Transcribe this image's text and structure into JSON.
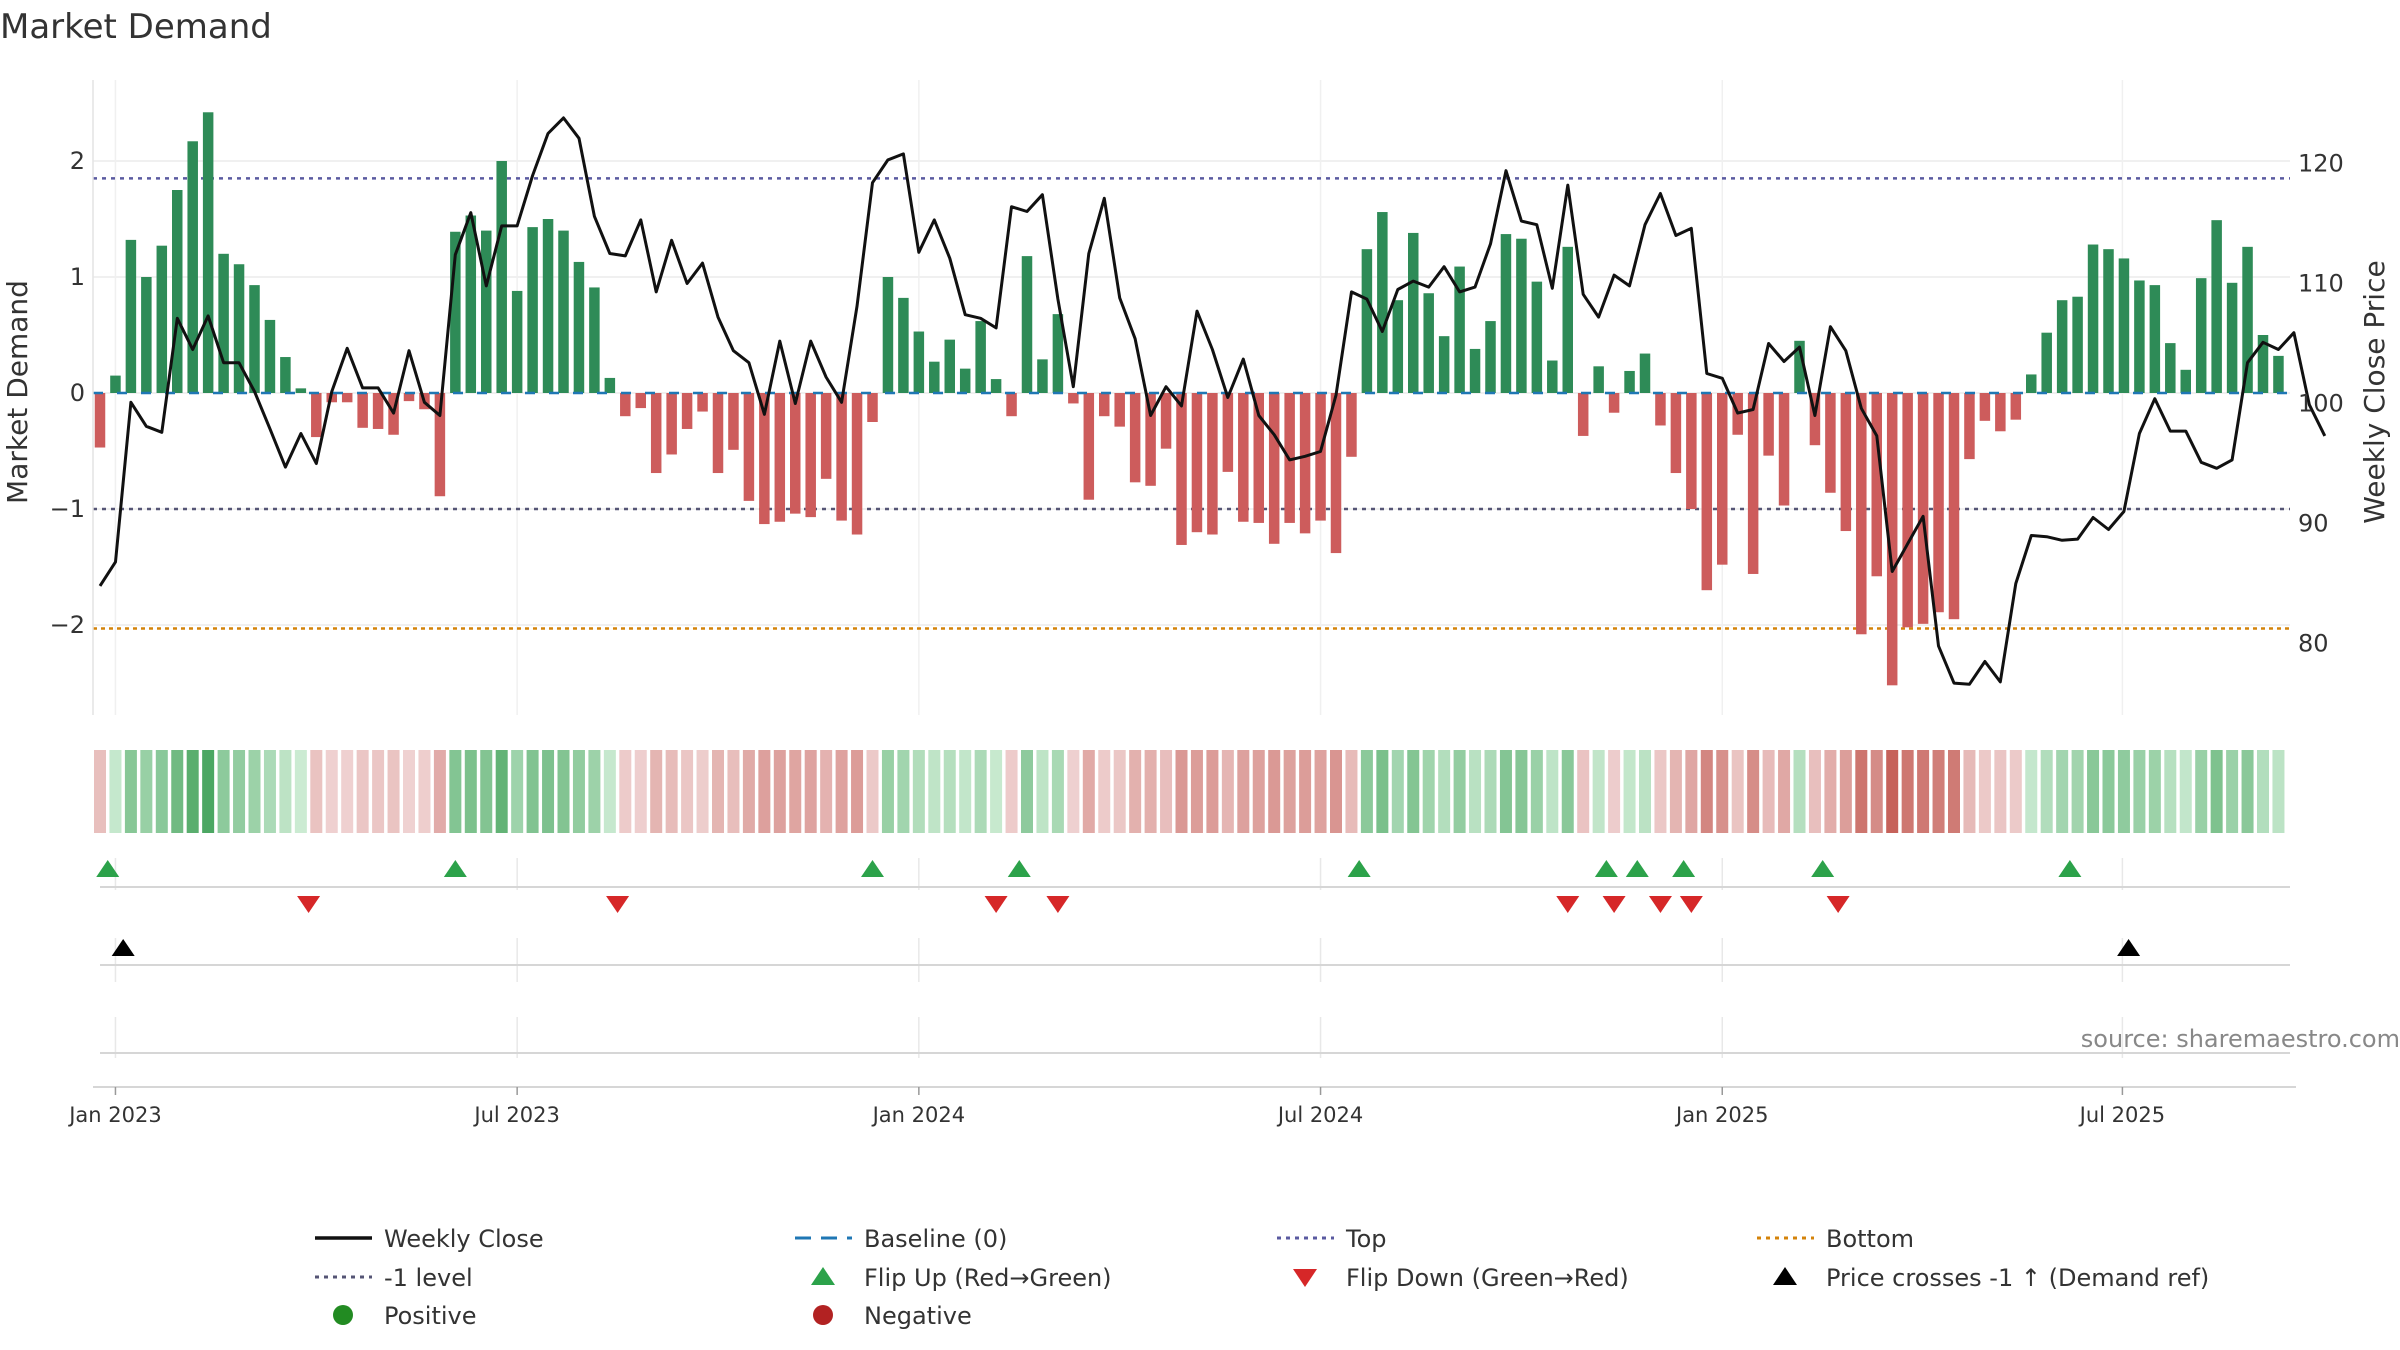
{
  "chart_data": {
    "type": "bar",
    "title": "Market Demand",
    "ylabel_left": "Market Demand",
    "ylabel_right": "Weekly Close Price",
    "source": "source: sharemaestro.com",
    "ylim_left": [
      -2.75,
      2.75
    ],
    "ylim_right": [
      74.37,
      127.72
    ],
    "yticks_left": [
      -2,
      -1,
      0,
      1,
      2
    ],
    "ytick_labels_left": [
      "−2",
      "−1",
      "0",
      "1",
      "2"
    ],
    "yticks_right": [
      80,
      90,
      100,
      110,
      120
    ],
    "ytick_labels_right": [
      "80",
      "90",
      "100",
      "110",
      "120"
    ],
    "reference_lines": {
      "top": 1.85,
      "level_minus1": -1,
      "bottom": -2.03,
      "baseline": 0
    },
    "x_start": "2022-12-25",
    "x_ticks": [
      {
        "label": "Jan 2023",
        "week": 1
      },
      {
        "label": "Jul 2023",
        "week": 27
      },
      {
        "label": "Jan 2024",
        "week": 53
      },
      {
        "label": "Jul 2024",
        "week": 79
      },
      {
        "label": "Jan 2025",
        "week": 105
      },
      {
        "label": "Jul 2025",
        "week": 130.9
      }
    ],
    "demand": [
      -0.47,
      0.15,
      1.32,
      1.0,
      1.27,
      1.75,
      2.17,
      2.42,
      1.2,
      1.11,
      0.93,
      0.63,
      0.31,
      0.04,
      -0.38,
      -0.08,
      -0.08,
      -0.3,
      -0.31,
      -0.36,
      -0.07,
      -0.14,
      -0.89,
      1.39,
      1.53,
      1.4,
      2.0,
      0.88,
      1.43,
      1.5,
      1.4,
      1.13,
      0.91,
      0.13,
      -0.2,
      -0.13,
      -0.69,
      -0.53,
      -0.31,
      -0.16,
      -0.69,
      -0.49,
      -0.93,
      -1.13,
      -1.11,
      -1.04,
      -1.07,
      -0.74,
      -1.1,
      -1.22,
      -0.25,
      1.0,
      0.82,
      0.53,
      0.27,
      0.46,
      0.21,
      0.62,
      0.12,
      -0.2,
      1.18,
      0.29,
      0.68,
      -0.09,
      -0.92,
      -0.2,
      -0.29,
      -0.77,
      -0.8,
      -0.48,
      -1.31,
      -1.2,
      -1.22,
      -0.68,
      -1.11,
      -1.12,
      -1.3,
      -1.12,
      -1.21,
      -1.1,
      -1.38,
      -0.55,
      1.24,
      1.56,
      0.8,
      1.38,
      0.86,
      0.49,
      1.09,
      0.38,
      0.62,
      1.37,
      1.33,
      0.96,
      0.28,
      1.26,
      -0.37,
      0.23,
      -0.17,
      0.19,
      0.34,
      -0.28,
      -0.69,
      -1.0,
      -1.7,
      -1.48,
      -0.36,
      -1.56,
      -0.54,
      -0.97,
      0.45,
      -0.45,
      -0.86,
      -1.19,
      -2.08,
      -1.58,
      -2.52,
      -2.02,
      -1.99,
      -1.89,
      -1.95,
      -0.57,
      -0.24,
      -0.33,
      -0.23,
      0.16,
      0.52,
      0.8,
      0.83,
      1.28,
      1.24,
      1.16,
      0.97,
      0.93,
      0.43,
      0.2,
      0.99,
      1.49,
      0.95,
      1.26,
      0.5,
      0.32
    ],
    "weekly_close": [
      84.8,
      86.8,
      100.1,
      98.1,
      97.6,
      107.1,
      104.5,
      107.3,
      103.4,
      103.4,
      101.0,
      97.9,
      94.7,
      97.5,
      95.0,
      101.0,
      104.6,
      101.3,
      101.3,
      99.2,
      104.4,
      100.1,
      99.0,
      112.4,
      115.9,
      109.8,
      114.8,
      114.8,
      119.0,
      122.5,
      123.8,
      122.1,
      115.6,
      112.5,
      112.3,
      115.3,
      109.3,
      113.6,
      110.0,
      111.7,
      107.2,
      104.4,
      103.4,
      99.1,
      105.2,
      100.0,
      105.2,
      102.2,
      100.1,
      108.1,
      118.4,
      120.3,
      120.8,
      112.6,
      115.3,
      112.1,
      107.4,
      107.1,
      106.3,
      116.4,
      116.0,
      117.4,
      108.7,
      101.4,
      112.5,
      117.1,
      108.8,
      105.4,
      99.0,
      101.4,
      99.8,
      107.7,
      104.5,
      100.5,
      103.7,
      99.0,
      97.4,
      95.3,
      95.6,
      96.0,
      100.7,
      109.3,
      108.7,
      106.0,
      109.5,
      110.2,
      109.7,
      111.4,
      109.3,
      109.7,
      113.3,
      119.4,
      115.2,
      114.9,
      109.6,
      118.2,
      109.1,
      107.2,
      110.7,
      109.8,
      114.9,
      117.5,
      114.0,
      114.6,
      102.5,
      102.1,
      99.2,
      99.5,
      105.0,
      103.5,
      104.7,
      99.0,
      106.4,
      104.4,
      99.6,
      97.3,
      86.0,
      88.3,
      90.6,
      79.8,
      76.7,
      76.6,
      78.5,
      76.8,
      85.0,
      89.0,
      88.9,
      88.6,
      88.7,
      90.5,
      89.5,
      91.0,
      97.5,
      100.4,
      97.7,
      97.7,
      95.1,
      94.6,
      95.3,
      103.4,
      105.1,
      104.5,
      105.9,
      99.9,
      97.3
    ],
    "flip_up_weeks": [
      0.5,
      23,
      50,
      59.5,
      81.5,
      97.5,
      99.5,
      102.5,
      111.5,
      127.5
    ],
    "flip_down_weeks": [
      13.5,
      33.5,
      58,
      62,
      95,
      98,
      101,
      103,
      112.5
    ],
    "price_cross_weeks": [
      1.5,
      131.3
    ],
    "colors": {
      "positive_bar": "#2e8b57",
      "negative_bar": "#cd5c5c",
      "price_line": "#111111",
      "top_line": "#5a5aa0",
      "level_line": "#555575",
      "bottom_line": "#d4830a",
      "baseline": "#1f77b4",
      "flip_up": "#2ca24a",
      "flip_down": "#d62728",
      "cross_marker": "#000000",
      "legend_positive": "#228b22",
      "legend_negative": "#b22222"
    },
    "legend": [
      {
        "label": "Weekly Close",
        "kind": "line-solid",
        "color": "#111111"
      },
      {
        "label": "Baseline (0)",
        "kind": "line-dash",
        "color": "#1f77b4"
      },
      {
        "label": "Top",
        "kind": "line-dot",
        "color": "#5a5aa0"
      },
      {
        "label": "Bottom",
        "kind": "line-dot",
        "color": "#d4830a"
      },
      {
        "label": "-1 level",
        "kind": "line-dot",
        "color": "#555575"
      },
      {
        "label": "Flip Up (Red→Green)",
        "kind": "tri-up",
        "color": "#2ca24a"
      },
      {
        "label": "Flip Down (Green→Red)",
        "kind": "tri-down",
        "color": "#d62728"
      },
      {
        "label": "Price crosses -1 ↑ (Demand ref)",
        "kind": "tri-up",
        "color": "#000000"
      },
      {
        "label": "Positive",
        "kind": "dot",
        "color": "#228b22"
      },
      {
        "label": "Negative",
        "kind": "dot",
        "color": "#b22222"
      }
    ]
  }
}
